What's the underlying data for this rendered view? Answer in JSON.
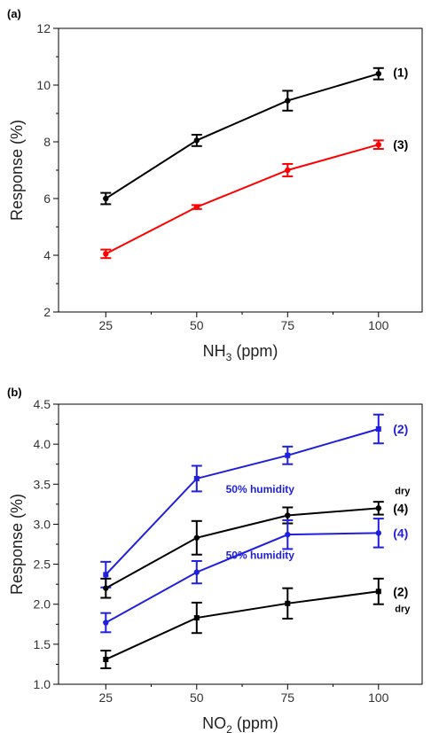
{
  "colors": {
    "black": "#000000",
    "red": "#ff0000",
    "blue": "#1f1fdf"
  },
  "chart_data": [
    {
      "type": "line",
      "panel_label": "(a)",
      "xlabel_main": "NH",
      "xlabel_sub": "3",
      "xlabel_rest": " (ppm)",
      "ylabel": "Response (%)",
      "xlim": [
        12,
        112
      ],
      "ylim": [
        2,
        12
      ],
      "xticks": [
        25,
        50,
        75,
        100
      ],
      "yticks": [
        2,
        4,
        6,
        8,
        10,
        12
      ],
      "x": [
        25,
        50,
        75,
        100
      ],
      "series": [
        {
          "id": "s1",
          "color": "#000000",
          "values": [
            6.0,
            8.05,
            9.45,
            10.4
          ],
          "errors": [
            0.2,
            0.2,
            0.35,
            0.2
          ],
          "marker": "circle"
        },
        {
          "id": "s3",
          "color": "#ff0000",
          "values": [
            4.05,
            5.7,
            7.0,
            7.9
          ],
          "errors": [
            0.15,
            0.07,
            0.22,
            0.15
          ],
          "marker": "circle"
        }
      ],
      "annotations": [
        {
          "text": "(1)",
          "x": 104,
          "y": 10.45,
          "color": "#000000",
          "size": "14"
        },
        {
          "text": "(3)",
          "x": 104,
          "y": 7.9,
          "color": "#000000",
          "size": "14"
        }
      ]
    },
    {
      "type": "line",
      "panel_label": "(b)",
      "xlabel_main": "NO",
      "xlabel_sub": "2",
      "xlabel_rest": " (ppm)",
      "ylabel": "Response (%)",
      "xlim": [
        12,
        112
      ],
      "ylim": [
        1.0,
        4.5
      ],
      "xticks": [
        25,
        50,
        75,
        100
      ],
      "yticks": [
        "1.0",
        "1.5",
        "2.0",
        "2.5",
        "3.0",
        "3.5",
        "4.0",
        "4.5"
      ],
      "x": [
        25,
        50,
        75,
        100
      ],
      "series": [
        {
          "id": "b2w",
          "color": "#1f1fdf",
          "values": [
            2.37,
            3.57,
            3.86,
            4.19
          ],
          "errors": [
            0.16,
            0.16,
            0.11,
            0.18
          ],
          "marker": "square"
        },
        {
          "id": "b4d",
          "color": "#000000",
          "values": [
            2.2,
            2.83,
            3.11,
            3.2
          ],
          "errors": [
            0.12,
            0.21,
            0.1,
            0.08
          ],
          "marker": "circle"
        },
        {
          "id": "b4w",
          "color": "#1f1fdf",
          "values": [
            1.77,
            2.4,
            2.87,
            2.89
          ],
          "errors": [
            0.12,
            0.14,
            0.18,
            0.18
          ],
          "marker": "circle"
        },
        {
          "id": "b2d",
          "color": "#000000",
          "values": [
            1.31,
            1.83,
            2.01,
            2.16
          ],
          "errors": [
            0.11,
            0.19,
            0.19,
            0.16
          ],
          "marker": "square"
        }
      ],
      "annotations": [
        {
          "text": "(2)",
          "x": 104,
          "y": 4.19,
          "color": "#1f1fdf",
          "size": "14"
        },
        {
          "text": "50% humidity",
          "x": 58,
          "y": 3.45,
          "color": "#1f1fdf",
          "size": "12"
        },
        {
          "text": "dry",
          "x": 104.5,
          "y": 3.43,
          "color": "#000000",
          "size": "11"
        },
        {
          "text": "(4)",
          "x": 104,
          "y": 3.2,
          "color": "#000000",
          "size": "14"
        },
        {
          "text": "(4)",
          "x": 104,
          "y": 2.89,
          "color": "#1f1fdf",
          "size": "14"
        },
        {
          "text": "50% humidity",
          "x": 58,
          "y": 2.62,
          "color": "#1f1fdf",
          "size": "12"
        },
        {
          "text": "(2)",
          "x": 104,
          "y": 2.16,
          "color": "#000000",
          "size": "14"
        },
        {
          "text": "dry",
          "x": 104.5,
          "y": 1.96,
          "color": "#000000",
          "size": "11"
        }
      ]
    }
  ]
}
